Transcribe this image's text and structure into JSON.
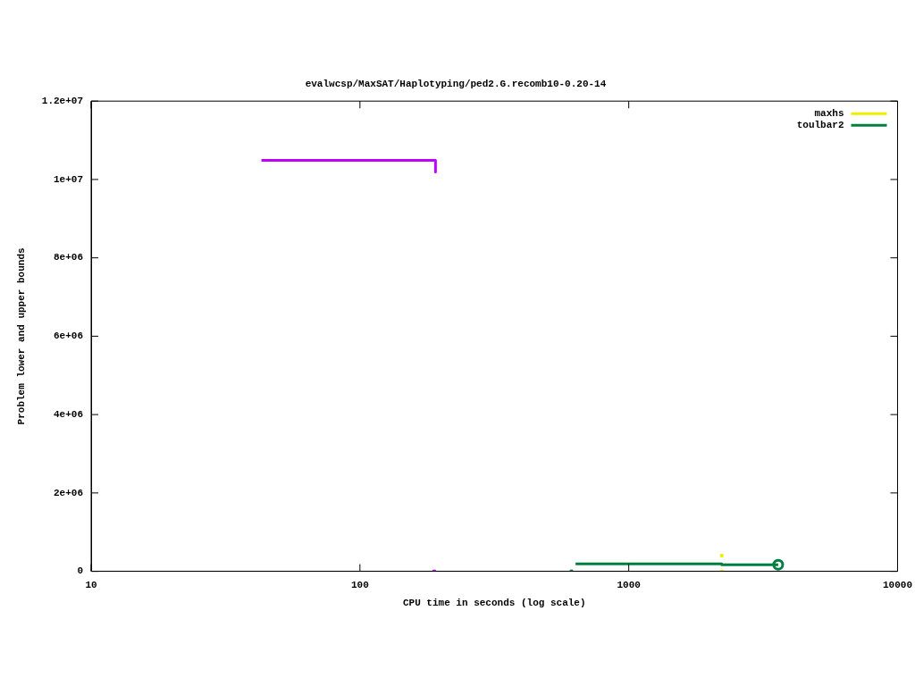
{
  "chart_data": {
    "type": "line",
    "title": "evalwcsp/MaxSAT/Haplotyping/ped2.G.recomb10-0.20-14",
    "xlabel": "CPU time in seconds (log scale)",
    "ylabel": "Problem lower and upper bounds",
    "log": "x",
    "xlim": [
      10,
      10000
    ],
    "xticks": [
      10,
      100,
      1000,
      10000
    ],
    "ylim": [
      0,
      12000000
    ],
    "yticks": [
      {
        "value": 0,
        "label": "0"
      },
      {
        "value": 2000000,
        "label": "2e+06"
      },
      {
        "value": 4000000,
        "label": "4e+06"
      },
      {
        "value": 6000000,
        "label": "6e+06"
      },
      {
        "value": 8000000,
        "label": "8e+06"
      },
      {
        "value": 10000000,
        "label": "1e+07"
      },
      {
        "value": 12000000,
        "label": "1.2e+07"
      }
    ],
    "grid": false,
    "legend": "top right",
    "line_style": "solid",
    "series": [
      {
        "color": "#c000ff",
        "marker": "none",
        "x": [
          43,
          191,
          191
        ],
        "values": [
          10490000,
          10490000,
          10190000
        ]
      },
      {
        "type": "scatter",
        "color": "#c000ff",
        "marker": "square",
        "x": [
          189
        ],
        "values": [
          0
        ]
      },
      {
        "type": "scatter",
        "name": "maxhs",
        "color": "#eeee00",
        "marker": "square",
        "x": [
          2218,
          2218
        ],
        "values": [
          400000,
          0
        ]
      },
      {
        "name": "toulbar2",
        "color": "#008040",
        "marker": "none",
        "x": [
          634,
          2218,
          2218,
          3597
        ],
        "values": [
          190000,
          190000,
          170000,
          170000
        ]
      },
      {
        "type": "scatter",
        "color": "#008040",
        "marker": "circle",
        "x": [
          3597
        ],
        "values": [
          170000
        ]
      },
      {
        "type": "scatter",
        "color": "#008040",
        "marker": "square",
        "x": [
          612
        ],
        "values": [
          0
        ]
      }
    ]
  }
}
